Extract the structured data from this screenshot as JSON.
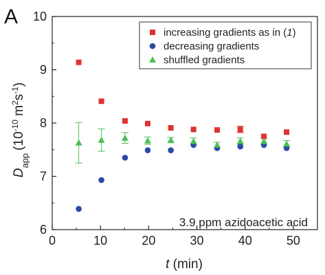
{
  "panel_label": "A",
  "chart_data": {
    "type": "scatter",
    "title": "",
    "xlabel": {
      "symbol": "t",
      "unit": "(min)"
    },
    "ylabel": {
      "symbol": "D",
      "subscript": "app",
      "unit_prefix": "(10",
      "unit_exp1": "-10",
      "unit_mid": " m",
      "unit_exp2": "2",
      "unit_mid2": "s",
      "unit_exp3": "-1",
      "unit_suffix": ")"
    },
    "xlim": [
      0,
      55
    ],
    "ylim": [
      6,
      10
    ],
    "x_ticks": [
      0,
      10,
      20,
      30,
      40,
      50
    ],
    "y_ticks": [
      6,
      7,
      8,
      9,
      10
    ],
    "grid": false,
    "legend_position": "top-right",
    "annotation": "3.9 ppm azidoacetic acid",
    "series": [
      {
        "name": "increasing gradients as in (1)",
        "legend_main": "increasing gradients as in (",
        "legend_italic": "1",
        "legend_tail": ")",
        "marker": "square",
        "color": "#e03232",
        "points": [
          {
            "x": 5.5,
            "y": 9.14
          },
          {
            "x": 10.2,
            "y": 8.41
          },
          {
            "x": 15.1,
            "y": 8.04
          },
          {
            "x": 19.8,
            "y": 7.99
          },
          {
            "x": 24.6,
            "y": 7.91
          },
          {
            "x": 29.3,
            "y": 7.88
          },
          {
            "x": 34.2,
            "y": 7.87
          },
          {
            "x": 39.0,
            "y": 7.88,
            "err": 0.06
          },
          {
            "x": 43.9,
            "y": 7.75
          },
          {
            "x": 48.6,
            "y": 7.83
          }
        ]
      },
      {
        "name": "decreasing gradients",
        "marker": "circle",
        "color": "#2a4aa8",
        "points": [
          {
            "x": 5.5,
            "y": 6.39
          },
          {
            "x": 10.2,
            "y": 6.93
          },
          {
            "x": 15.1,
            "y": 7.35
          },
          {
            "x": 19.8,
            "y": 7.49
          },
          {
            "x": 24.6,
            "y": 7.49
          },
          {
            "x": 29.3,
            "y": 7.59
          },
          {
            "x": 34.2,
            "y": 7.53
          },
          {
            "x": 39.0,
            "y": 7.56
          },
          {
            "x": 43.9,
            "y": 7.59
          },
          {
            "x": 48.6,
            "y": 7.53
          }
        ]
      },
      {
        "name": "shuffled gradients",
        "marker": "triangle",
        "color": "#4cbf55",
        "points": [
          {
            "x": 5.5,
            "y": 7.63,
            "err": 0.38
          },
          {
            "x": 10.2,
            "y": 7.68,
            "err": 0.21
          },
          {
            "x": 15.1,
            "y": 7.72,
            "err": 0.1
          },
          {
            "x": 19.8,
            "y": 7.67,
            "err": 0.07
          },
          {
            "x": 24.6,
            "y": 7.68,
            "err": 0.05
          },
          {
            "x": 29.3,
            "y": 7.66,
            "err": 0.06
          },
          {
            "x": 34.2,
            "y": 7.59,
            "err": 0.05
          },
          {
            "x": 39.0,
            "y": 7.66,
            "err": 0.06
          },
          {
            "x": 43.9,
            "y": 7.66,
            "err": 0.05
          },
          {
            "x": 48.6,
            "y": 7.61,
            "err": 0.06
          }
        ]
      }
    ]
  }
}
